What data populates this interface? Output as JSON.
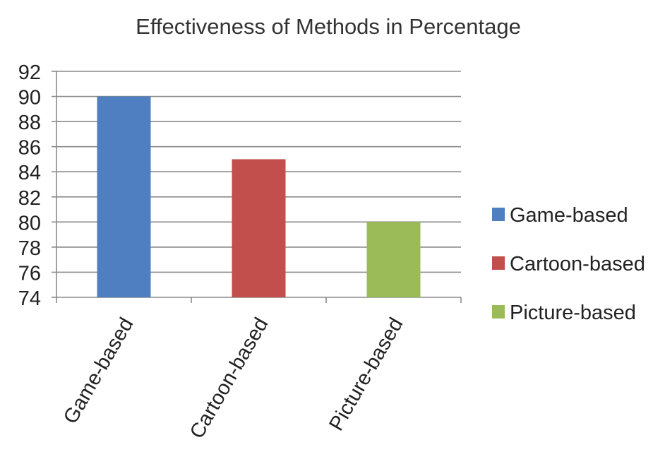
{
  "chart_data": {
    "type": "bar",
    "title": "Effectiveness of Methods in Percentage",
    "categories": [
      "Game-based",
      "Cartoon-based",
      "Picture-based"
    ],
    "values": [
      90,
      85,
      80
    ],
    "ylim": [
      74,
      92
    ],
    "yticks": [
      74,
      76,
      78,
      80,
      82,
      84,
      86,
      88,
      90,
      92
    ],
    "grid": true,
    "legend_position": "right",
    "legend": [
      "Game-based",
      "Cartoon-based",
      "Picture-based"
    ],
    "colors": [
      "#4f7fc0",
      "#c24f4c",
      "#9bbb59"
    ]
  }
}
